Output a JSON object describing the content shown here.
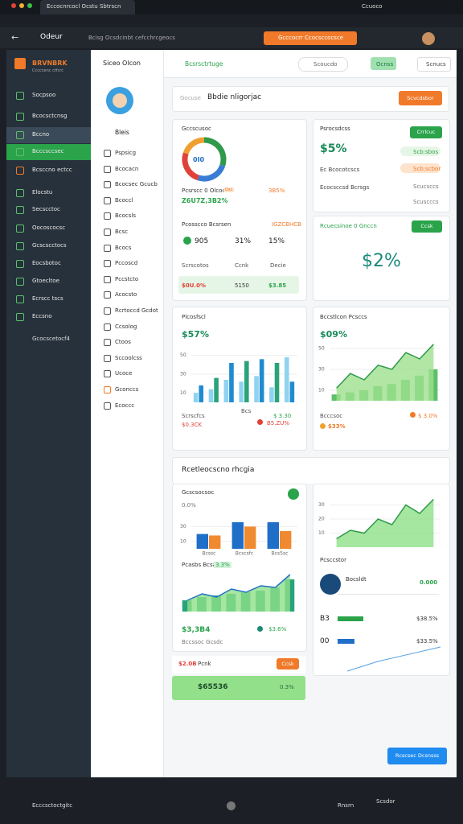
{
  "browser": {
    "tab": "Eccocnrcocl Ocstu Sbtrscn",
    "account": "Ccuoco",
    "address_label": "Odeur",
    "address": "Bcisg Ocsdcinbt cefcchrcgeocs",
    "alert": "Gcccocrr Ccocsccocsce"
  },
  "sidebar": {
    "brand": "BRVNBRK",
    "brand_sub": "Cccccenc ctfcrc",
    "items": [
      "Socpsoo",
      "Bcocsctcnsg",
      "Bccno",
      "Bcccsccsec",
      "Bcsccno ectcc",
      "Elocstu",
      "Secscctoc",
      "Oocoscocsc",
      "Gcscscctocs",
      "Eocsbotoc",
      "Gtoecltoe",
      "Ecrscc tscs",
      "Eccsno"
    ],
    "footer": "Gcocscetocf4"
  },
  "panel": {
    "header": "Siceo Olcon",
    "user": "Bleis",
    "items": [
      "Pspsicg",
      "Bcocacn",
      "Bcocsec Gcucb",
      "Bcoccl",
      "Bcocsls",
      "Bcsc",
      "Bcocs",
      "Pccoscd",
      "Pccstcto",
      "Acocsto",
      "Rcrtoccd Gcdot",
      "Ccsolog",
      "Ctoos",
      "Sccoolcss",
      "Ucoce",
      "Gconccs",
      "Ecoccc"
    ]
  },
  "topbar": {
    "title": "Bcsrsctrtuge",
    "search": "Scoucdo",
    "badge": "Ocnss",
    "menu": "Scnucs"
  },
  "banner": {
    "hint": "Gocuse",
    "title": "Bbdie nligorjac",
    "button": "Scvcdsbor"
  },
  "card_summary": {
    "title": "Gccscusoc",
    "donut": {
      "type": "pie",
      "values": [
        30,
        25,
        25,
        20
      ],
      "colors": [
        "#2e9a4a",
        "#3a7bd5",
        "#e0423a",
        "#f0a030"
      ]
    },
    "donut_label": "0I0",
    "caption": "Pcsrscc 0 Olcoc",
    "caption_tag": "Osc",
    "value": "Z6U7Z,3B2%",
    "value_right": "3B5%",
    "sub_title": "Pcosscco Bcsrsen",
    "sub_right": "IGZCBHCB",
    "stats": [
      "905",
      "31%",
      "15%"
    ],
    "foot_labels": [
      "Scrscotos",
      "Ccnk",
      "Decie"
    ],
    "foot_values": [
      "$0U.0%",
      "5150",
      "$3.85"
    ]
  },
  "card_progress": {
    "title": "Psrocsdcss",
    "button": "Crrlcuc",
    "value": "$5%",
    "left": [
      "Ec Bcocotcscs",
      "Ecocsccsd Bcrsgs"
    ],
    "right": [
      "Scb:sbos",
      "Scb:scbor",
      "Scucsccs",
      "Scuscccs"
    ]
  },
  "card_goal": {
    "title": "Rcuecsinoe 0 Gnccn",
    "button": "Ccsk",
    "value": "$2%"
  },
  "card_bars": {
    "title": "Plcosfscl",
    "value": "$57%",
    "chart": {
      "type": "bar",
      "ylim": [
        0,
        60
      ],
      "yticks": [
        10,
        30,
        50
      ],
      "series": [
        {
          "color": "#8fd3f0",
          "values": [
            10,
            14,
            24,
            22,
            28,
            16,
            48
          ]
        },
        {
          "color": "#1f8bd0",
          "values": [
            18,
            26,
            42,
            44,
            46,
            42,
            22
          ]
        }
      ],
      "alt_color": "#2aa37a"
    },
    "legend_left": "Scrscfcs",
    "legend_mid": "Bcs",
    "legend_right": "$ 3.30",
    "foot_left": "$0.3CK",
    "foot_right": "B5.ZU%"
  },
  "card_area": {
    "title": "Bccstlcon Pcsccs",
    "value": "$09%",
    "chart": {
      "type": "combo",
      "ylim": [
        0,
        60
      ],
      "yticks": [
        10,
        30,
        50
      ],
      "series": [
        {
          "mark": "bar",
          "color": "#5cc06a",
          "values": [
            6,
            8,
            10,
            14,
            16,
            20,
            24,
            30
          ]
        },
        {
          "mark": "area",
          "color": "#2e9a4a",
          "fill": "#9fe08f",
          "values": [
            12,
            26,
            20,
            34,
            30,
            46,
            40,
            54
          ]
        }
      ]
    },
    "foot_left": "Bcccsoc",
    "foot_right": "$ 3.0%",
    "foot_value": "$33%"
  },
  "section": {
    "title": "Rcetleocscno rhcgia",
    "left_title": "Gcscsocsoc",
    "left_tick": "0.0%",
    "grouped": {
      "type": "bar",
      "categories": [
        "Bcssc",
        "Bcscsfc",
        "Bcs5sc"
      ],
      "ylim": [
        0,
        50
      ],
      "yticks": [
        10,
        30
      ],
      "series": [
        {
          "color": "#1f6fc9",
          "values": [
            20,
            36,
            36
          ]
        },
        {
          "color": "#f08a30",
          "values": [
            18,
            30,
            24
          ]
        }
      ]
    },
    "combo_title": "Pcasbs Bcsae",
    "combo_tag": "3.3%",
    "combo": {
      "type": "combo",
      "ylim": [
        0,
        50
      ],
      "series": [
        {
          "mark": "bar",
          "color": "#2aa37a",
          "values": [
            14,
            18,
            20,
            22,
            24,
            26,
            30,
            40
          ]
        },
        {
          "mark": "area",
          "color": "#1f6fc9",
          "fill": "#8ee08a",
          "values": [
            14,
            22,
            18,
            28,
            24,
            32,
            30,
            46
          ]
        }
      ]
    },
    "combo_foot": "$3,3B4",
    "combo_right": "$3.6%",
    "combo_sub": "Bccssoc Gcsdc",
    "right_chart": {
      "type": "combo",
      "ylim": [
        0,
        40
      ],
      "yticks": [
        10,
        20,
        30
      ],
      "series": [
        {
          "mark": "area",
          "color": "#2e9a4a",
          "fill": "#8ee08a",
          "values": [
            6,
            12,
            10,
            20,
            16,
            30,
            24,
            34
          ]
        }
      ]
    },
    "right_title": "Pcsccstor",
    "right_item": "Bocsldt",
    "right_item_value": "0.000",
    "rows": [
      {
        "label": "B3",
        "value": "$38.5%",
        "progress": 45
      },
      {
        "label": "00",
        "value": "$33.5%",
        "progress": 30
      }
    ],
    "orange_label": "$2.0B",
    "orange_text": "Pcnk",
    "orange_button": "Ccsk",
    "green_value": "$65536",
    "green_right": "0.3%"
  },
  "cta": "Rcscsec Dcsnsss",
  "taskbar": {
    "left": "Ecccsctoctgitc",
    "center_a": "Rnsrn",
    "center_b": "Scsdor"
  }
}
